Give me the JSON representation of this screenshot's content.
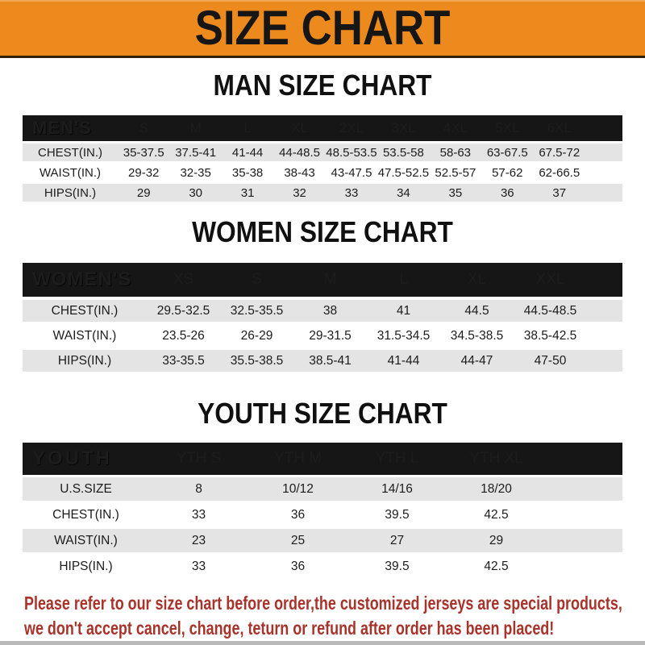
{
  "banner": {
    "title": "SIZE CHART"
  },
  "sections": [
    {
      "heading": "MAN SIZE CHART",
      "header_label": "MEN'S",
      "columns": [
        "S",
        "M",
        "L",
        "XL",
        "2XL",
        "3XL",
        "4XL",
        "5XL",
        "6XL"
      ],
      "rows": [
        {
          "label": "CHEST(IN.)",
          "values": [
            "35-37.5",
            "37.5-41",
            "41-44",
            "44-48.5",
            "48.5-53.5",
            "53.5-58",
            "58-63",
            "63-67.5",
            "67.5-72"
          ]
        },
        {
          "label": "WAIST(IN.)",
          "values": [
            "29-32",
            "32-35",
            "35-38",
            "38-43",
            "43-47.5",
            "47.5-52.5",
            "52.5-57",
            "57-62",
            "62-66.5"
          ]
        },
        {
          "label": "HIPS(IN.)",
          "values": [
            "29",
            "30",
            "31",
            "32",
            "33",
            "34",
            "35",
            "36",
            "37"
          ]
        }
      ]
    },
    {
      "heading": "WOMEN SIZE CHART",
      "header_label": "WOMEN'S",
      "columns": [
        "XS",
        "S",
        "M",
        "L",
        "XL",
        "XXL"
      ],
      "rows": [
        {
          "label": "CHEST(IN.)",
          "values": [
            "29.5-32.5",
            "32.5-35.5",
            "38",
            "41",
            "44.5",
            "44.5-48.5"
          ]
        },
        {
          "label": "WAIST(IN.)",
          "values": [
            "23.5-26",
            "26-29",
            "29-31.5",
            "31.5-34.5",
            "34.5-38.5",
            "38.5-42.5"
          ]
        },
        {
          "label": "HIPS(IN.)",
          "values": [
            "33-35.5",
            "35.5-38.5",
            "38.5-41",
            "41-44",
            "44-47",
            "47-50"
          ]
        }
      ]
    },
    {
      "heading": "YOUTH SIZE CHART",
      "header_label": "YOUTH",
      "columns": [
        "YTH S",
        "YTH M",
        "YTH L",
        "YTH XL"
      ],
      "rows": [
        {
          "label": "U.S.SIZE",
          "values": [
            "8",
            "10/12",
            "14/16",
            "18/20"
          ]
        },
        {
          "label": "CHEST(IN.)",
          "values": [
            "33",
            "36",
            "39.5",
            "42.5"
          ]
        },
        {
          "label": "WAIST(IN.)",
          "values": [
            "23",
            "25",
            "27",
            "29"
          ]
        },
        {
          "label": "HIPS(IN.)",
          "values": [
            "33",
            "36",
            "39.5",
            "42.5"
          ]
        }
      ]
    }
  ],
  "footer": {
    "line1": "Please refer to our size chart before order,the customized jerseys are special products,",
    "line2": "we don't accept cancel, change, teturn or refund after order has been placed!"
  },
  "colors": {
    "banner_bg": "#EC8A1D",
    "band_bg": "#161616",
    "row_gray": "#E4E4E4",
    "note_red": "#A8332A"
  }
}
